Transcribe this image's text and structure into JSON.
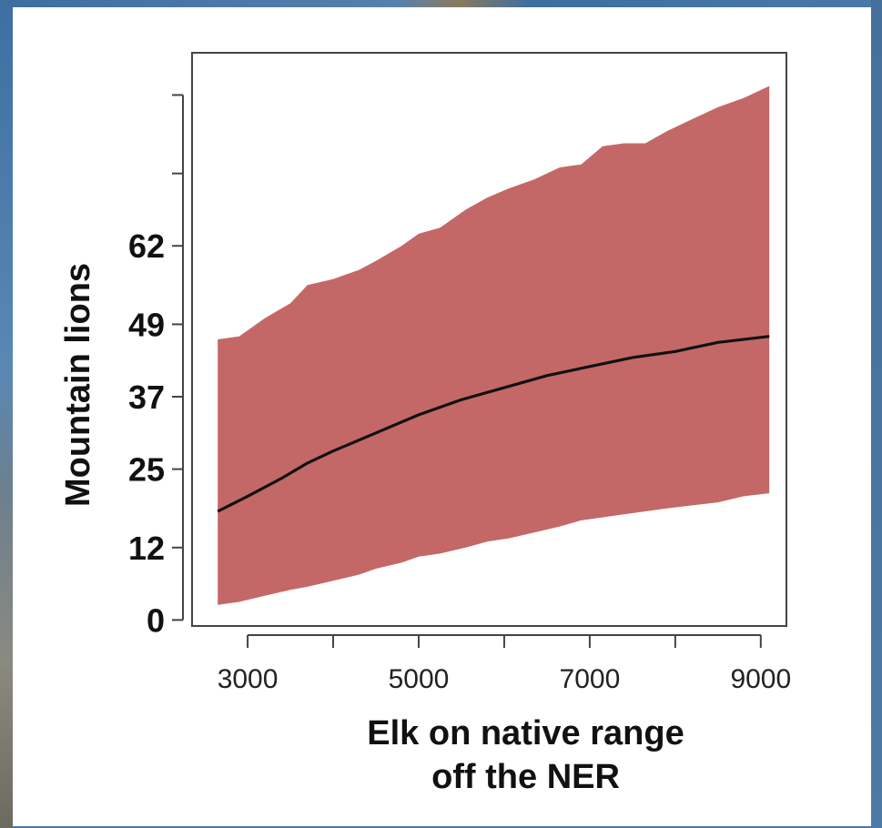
{
  "chart_data": {
    "type": "area",
    "xlabel_line1": "Elk on native range",
    "xlabel_line2": "off the NER",
    "ylabel": "Mountain lions",
    "x_ticks": [
      3000,
      5000,
      7000,
      9000
    ],
    "x_tick_labels": [
      "3000",
      "5000",
      "7000",
      "9000"
    ],
    "x_minor_ticks": [
      4000,
      6000,
      8000
    ],
    "y_ticks": [
      0,
      12,
      25,
      37,
      49,
      62
    ],
    "y_tick_labels": [
      "0",
      "12",
      "25",
      "37",
      "49",
      "62"
    ],
    "y_unlabeled_ticks": [
      74,
      87
    ],
    "xlim": [
      2350,
      9300
    ],
    "ylim": [
      -1,
      94
    ],
    "colors": {
      "band": "#c36867",
      "line": "#111111",
      "frame": "#444444"
    },
    "series": [
      {
        "kind": "band",
        "x": [
          2650,
          2900,
          3200,
          3500,
          3700,
          4000,
          4300,
          4500,
          4800,
          5000,
          5250,
          5550,
          5800,
          6050,
          6350,
          6650,
          6900,
          7150,
          7400,
          7650,
          7900,
          8200,
          8500,
          8800,
          9100
        ],
        "upper": [
          46.5,
          47,
          50,
          52.5,
          55.5,
          56.5,
          58,
          59.5,
          62,
          64,
          65,
          68,
          70,
          71.5,
          73,
          75,
          75.5,
          78.5,
          79,
          79,
          81,
          83,
          85,
          86.5,
          88.5
        ],
        "lower": [
          2.5,
          3,
          4,
          5,
          5.5,
          6.5,
          7.5,
          8.5,
          9.5,
          10.5,
          11,
          12,
          13,
          13.5,
          14.5,
          15.5,
          16.5,
          17,
          17.5,
          18,
          18.5,
          19,
          19.5,
          20.5,
          21
        ]
      },
      {
        "kind": "line",
        "x": [
          2650,
          3000,
          3400,
          3700,
          4000,
          4500,
          5000,
          5500,
          6000,
          6500,
          7000,
          7500,
          8000,
          8500,
          9100
        ],
        "y": [
          18,
          20.5,
          23.5,
          26,
          28,
          31,
          34,
          36.5,
          38.5,
          40.5,
          42,
          43.5,
          44.5,
          46,
          47
        ]
      }
    ]
  }
}
